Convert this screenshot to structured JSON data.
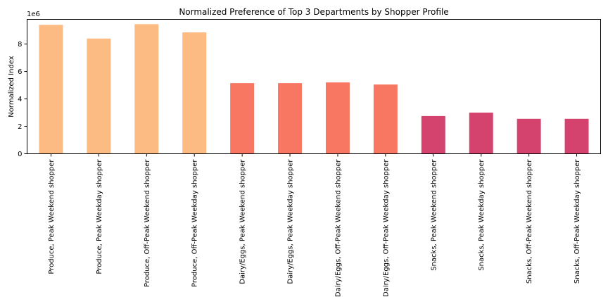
{
  "chart_data": {
    "type": "bar",
    "title": "Normalized Preference of Top 3 Departments by Shopper Profile",
    "xlabel": "",
    "ylabel": "Normalized Index",
    "y_multiplier_label": "1e6",
    "ylim": [
      0,
      9.8
    ],
    "yticks": [
      "0",
      "2",
      "4",
      "6",
      "8"
    ],
    "grid": false,
    "legend": "none",
    "categories": [
      "Produce, Peak Weekend shopper",
      "Produce, Peak Weekday shopper",
      "Produce, Off-Peak Weekend shopper",
      "Produce, Off-Peak Weekday shopper",
      "Dairy/Eggs, Peak Weekend shopper",
      "Dairy/Eggs, Peak Weekday shopper",
      "Dairy/Eggs, Off-Peak Weekend shopper",
      "Dairy/Eggs, Off-Peak Weekday shopper",
      "Snacks, Peak Weekend shopper",
      "Snacks, Peak Weekday shopper",
      "Snacks, Off-Peak Weekend shopper",
      "Snacks, Off-Peak Weekday shopper"
    ],
    "values": [
      9.4,
      8.4,
      9.45,
      8.85,
      5.15,
      5.15,
      5.2,
      5.05,
      2.75,
      3.0,
      2.55,
      2.55
    ],
    "colors": [
      "#fdbb84",
      "#fdbb84",
      "#fdbb84",
      "#fdbb84",
      "#f77762",
      "#f77762",
      "#f77762",
      "#f77762",
      "#d4436e",
      "#d4436e",
      "#d4436e",
      "#d4436e"
    ]
  }
}
